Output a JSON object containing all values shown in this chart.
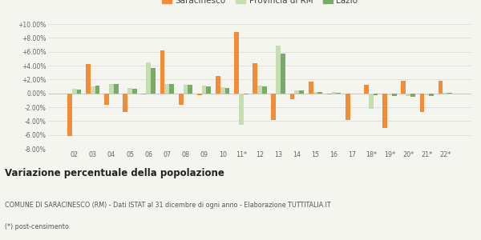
{
  "years": [
    "02",
    "03",
    "04",
    "05",
    "06",
    "07",
    "08",
    "09",
    "10",
    "11*",
    "12",
    "13",
    "14",
    "15",
    "16",
    "17",
    "18*",
    "19*",
    "20*",
    "21*",
    "22*"
  ],
  "saracinesco": [
    -6.2,
    4.2,
    -1.7,
    -2.7,
    -0.2,
    6.2,
    -1.7,
    -0.3,
    2.5,
    8.8,
    4.3,
    -3.9,
    -0.9,
    1.7,
    -0.2,
    -3.8,
    1.2,
    -5.0,
    1.8,
    -2.7,
    1.8
  ],
  "provincia_rm": [
    0.6,
    1.0,
    1.3,
    0.8,
    4.5,
    1.3,
    1.2,
    1.1,
    0.9,
    -4.5,
    1.1,
    6.9,
    0.4,
    0.2,
    0.2,
    0.0,
    -2.2,
    -0.3,
    -0.4,
    -0.3,
    0.1
  ],
  "lazio": [
    0.5,
    1.1,
    1.4,
    0.7,
    3.6,
    1.3,
    1.2,
    1.0,
    0.8,
    -0.2,
    1.0,
    5.7,
    0.4,
    0.2,
    0.1,
    0.0,
    -0.3,
    -0.4,
    -0.5,
    -0.4,
    0.05
  ],
  "color_saracinesco": "#f28c38",
  "color_provincia": "#c5ddb0",
  "color_lazio": "#7aaa6a",
  "ylim_min": -8.0,
  "ylim_max": 10.0,
  "yticks": [
    -8.0,
    -6.0,
    -4.0,
    -2.0,
    0.0,
    2.0,
    4.0,
    6.0,
    8.0,
    10.0
  ],
  "title_main": "Variazione percentuale della popolazione",
  "subtitle1": "COMUNE DI SARACINESCO (RM) - Dati ISTAT al 31 dicembre di ogni anno - Elaborazione TUTTITALIA.IT",
  "subtitle2": "(*) post-censimento",
  "legend_labels": [
    "Saracinesco",
    "Provincia di RM",
    "Lazio"
  ],
  "background_color": "#f5f5f0",
  "grid_color": "#dddddd",
  "bar_width": 0.25
}
